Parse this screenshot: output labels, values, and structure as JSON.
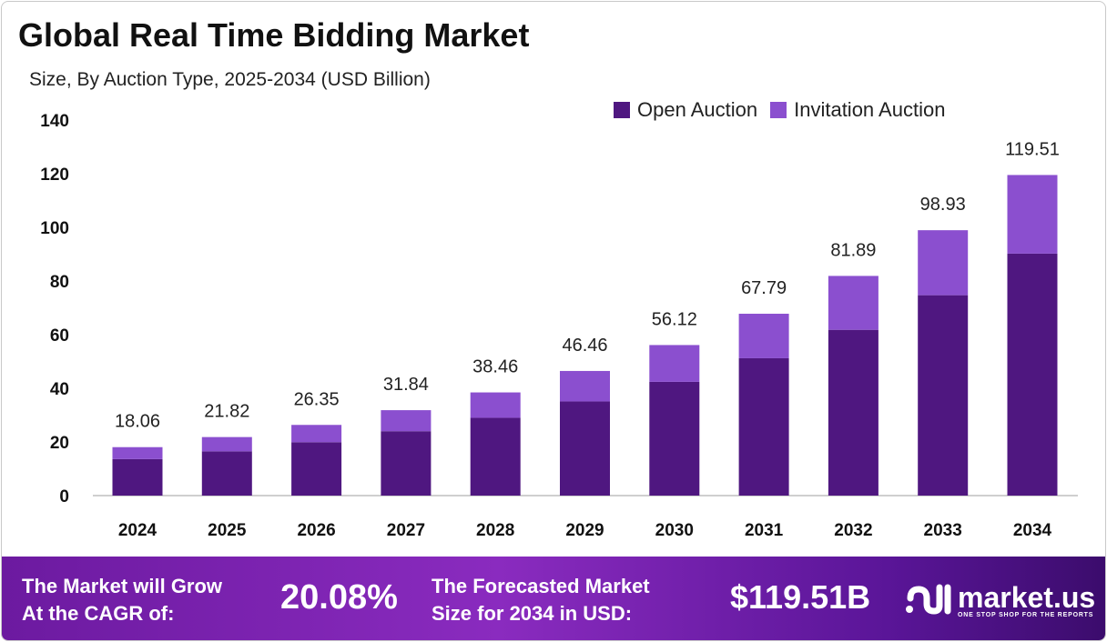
{
  "chart_data": {
    "type": "bar",
    "stacked": true,
    "title": "Global Real Time Bidding Market",
    "subtitle": "Size, By Auction Type, 2025-2034 (USD Billion)",
    "categories": [
      "2024",
      "2025",
      "2026",
      "2027",
      "2028",
      "2029",
      "2030",
      "2031",
      "2032",
      "2033",
      "2034"
    ],
    "series": [
      {
        "name": "Open Auction",
        "color": "#4f1780",
        "values": [
          13.6,
          16.5,
          19.9,
          24.0,
          29.0,
          35.1,
          42.4,
          51.2,
          61.8,
          74.7,
          90.2
        ]
      },
      {
        "name": "Invitation Auction",
        "color": "#8b4fcf",
        "values": [
          4.46,
          5.32,
          6.45,
          7.84,
          9.46,
          11.36,
          13.72,
          16.59,
          20.09,
          24.23,
          29.31
        ]
      }
    ],
    "totals": [
      "18.06",
      "21.82",
      "26.35",
      "31.84",
      "38.46",
      "46.46",
      "56.12",
      "67.79",
      "81.89",
      "98.93",
      "119.51"
    ],
    "ylim": [
      0,
      140
    ],
    "yticks": [
      "0",
      "20",
      "40",
      "60",
      "80",
      "100",
      "120",
      "140"
    ],
    "grid": false,
    "legend_position": "top-right"
  },
  "footer": {
    "cagr_label_1": "The Market will Grow",
    "cagr_label_2": "At the CAGR of:",
    "cagr_value": "20.08%",
    "forecast_label_1": "The Forecasted Market",
    "forecast_label_2": "Size for 2034 in USD:",
    "forecast_value": "$119.51B",
    "logo_name": "market.us",
    "logo_tagline": "ONE STOP SHOP FOR THE REPORTS"
  }
}
